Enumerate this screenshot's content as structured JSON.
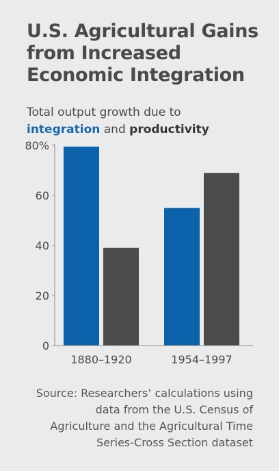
{
  "title": "U.S. Agricultural Gains from Increased Economic Integration",
  "subtitle": {
    "prefix": "Total output growth due to",
    "series1": "integration",
    "joiner": "and",
    "series2": "productivity"
  },
  "source": "Source: Researchers’ calculations using data from the U.S. Census of Agriculture and the Agricultural Time Series-Cross Section dataset",
  "colors": {
    "integration": "#0b62ab",
    "productivity": "#4b4c4e",
    "axis": "#8c8c8c"
  },
  "chart_data": {
    "type": "bar",
    "categories": [
      "1880–1920",
      "1954–1997"
    ],
    "series": [
      {
        "name": "integration",
        "values": [
          79.5,
          55
        ]
      },
      {
        "name": "productivity",
        "values": [
          39,
          69
        ]
      }
    ],
    "ylim": [
      0,
      80
    ],
    "yticks": [
      "0",
      "20",
      "40",
      "60",
      "80%"
    ],
    "ytick_values": [
      0,
      20,
      40,
      60,
      80
    ],
    "grid": false
  }
}
